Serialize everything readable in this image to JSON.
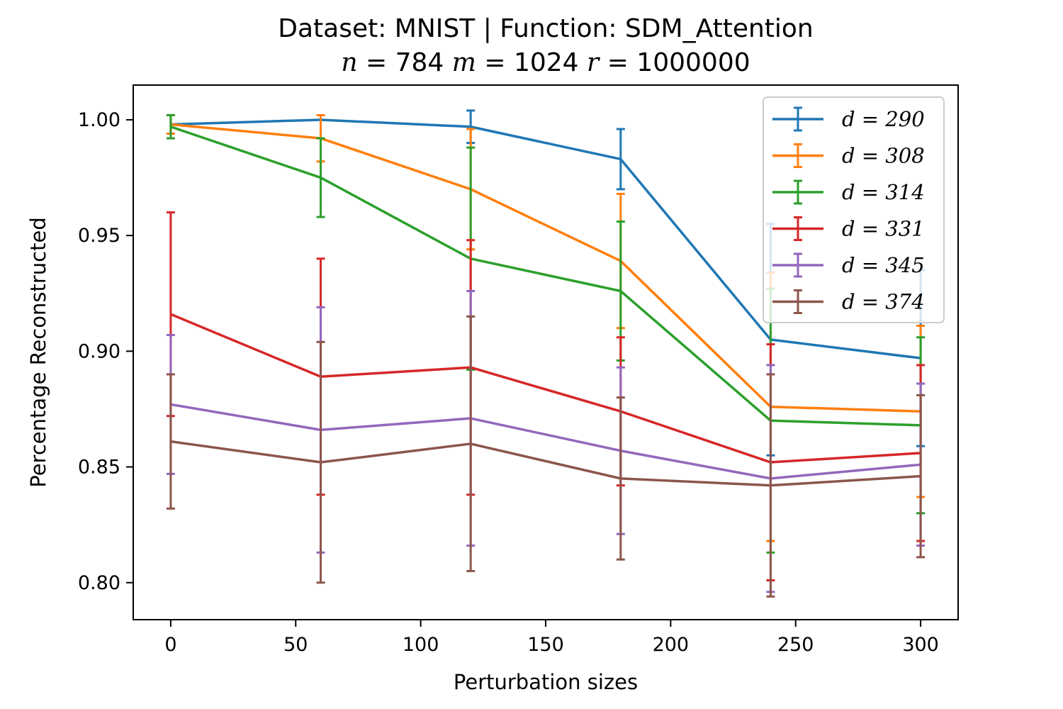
{
  "chart_data": {
    "type": "line",
    "title": "Dataset: MNIST | Function: SDM_Attention",
    "subtitle": "n = 784 m = 1024 r = 1000000",
    "xlabel": "Perturbation sizes",
    "ylabel": "Percentage Reconstructed",
    "xlim": [
      -15,
      315
    ],
    "ylim": [
      0.784,
      1.015
    ],
    "x_ticks": [
      0,
      50,
      100,
      150,
      200,
      250,
      300
    ],
    "y_ticks": [
      0.8,
      0.85,
      0.9,
      0.95,
      1.0
    ],
    "y_tick_labels": [
      "0.80",
      "0.85",
      "0.90",
      "0.95",
      "1.00"
    ],
    "grid": false,
    "legend_position": "top-right",
    "x": [
      0,
      60,
      120,
      180,
      240,
      300
    ],
    "series": [
      {
        "name": "d = 290",
        "color": "#1f77b4",
        "values": [
          0.998,
          1.0,
          0.997,
          0.983,
          0.905,
          0.897
        ],
        "errors": [
          0.004,
          0.0,
          0.007,
          0.013,
          0.05,
          0.038
        ]
      },
      {
        "name": "d = 308",
        "color": "#ff7f0e",
        "values": [
          0.998,
          0.992,
          0.97,
          0.939,
          0.876,
          0.874
        ],
        "errors": [
          0.004,
          0.01,
          0.026,
          0.029,
          0.058,
          0.037
        ]
      },
      {
        "name": "d = 314",
        "color": "#2ca02c",
        "values": [
          0.997,
          0.975,
          0.94,
          0.926,
          0.87,
          0.868
        ],
        "errors": [
          0.005,
          0.017,
          0.048,
          0.03,
          0.057,
          0.038
        ]
      },
      {
        "name": "d = 331",
        "color": "#d62728",
        "values": [
          0.916,
          0.889,
          0.893,
          0.874,
          0.852,
          0.856
        ],
        "errors": [
          0.044,
          0.051,
          0.055,
          0.032,
          0.051,
          0.038
        ]
      },
      {
        "name": "d = 345",
        "color": "#9467bd",
        "values": [
          0.877,
          0.866,
          0.871,
          0.857,
          0.845,
          0.851
        ],
        "errors": [
          0.03,
          0.053,
          0.055,
          0.036,
          0.049,
          0.035
        ]
      },
      {
        "name": "d = 374",
        "color": "#8c564b",
        "values": [
          0.861,
          0.852,
          0.86,
          0.845,
          0.842,
          0.846
        ],
        "errors": [
          0.029,
          0.052,
          0.055,
          0.035,
          0.048,
          0.035
        ]
      }
    ]
  }
}
